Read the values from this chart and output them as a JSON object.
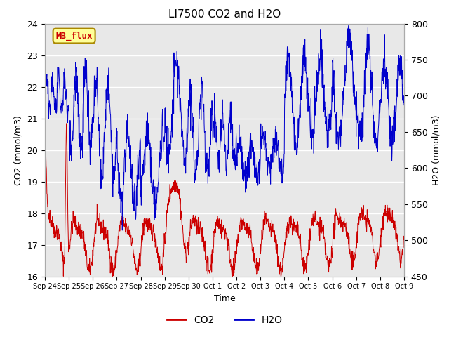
{
  "title": "LI7500 CO2 and H2O",
  "xlabel": "Time",
  "ylabel_left": "CO2 (mmol/m3)",
  "ylabel_right": "H2O (mmol/m3)",
  "ylim_left": [
    16.0,
    24.0
  ],
  "ylim_right": [
    450,
    800
  ],
  "background_color": "#e8e8e8",
  "legend_label_co2": "CO2",
  "legend_label_h2o": "H2O",
  "co2_color": "#cc0000",
  "h2o_color": "#0000cc",
  "watermark_text": "MB_flux",
  "watermark_facecolor": "#ffff99",
  "watermark_edgecolor": "#aa8800",
  "watermark_textcolor": "#cc0000",
  "grid_color": "white",
  "tick_label_dates": [
    "Sep 24",
    "Sep 25",
    "Sep 26",
    "Sep 27",
    "Sep 28",
    "Sep 29",
    "Sep 30",
    "Oct 1",
    "Oct 2",
    "Oct 3",
    "Oct 4",
    "Oct 5",
    "Oct 6",
    "Oct 7",
    "Oct 8",
    "Oct 9"
  ],
  "tick_positions": [
    0,
    1,
    2,
    3,
    4,
    5,
    6,
    7,
    8,
    9,
    10,
    11,
    12,
    13,
    14,
    15
  ]
}
